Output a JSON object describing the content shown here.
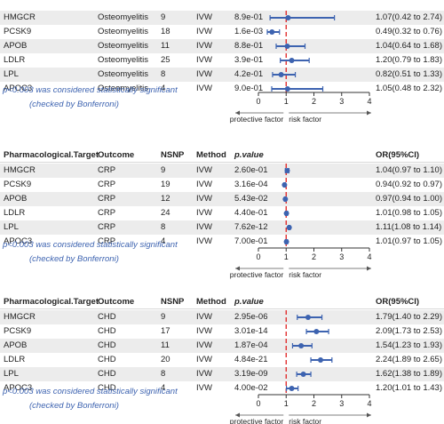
{
  "chart_data": [
    {
      "type": "forest",
      "columns": [
        "Pharmacological.Target",
        "Outcome",
        "NSNP",
        "Method",
        "p.value",
        "OR(95%CI)"
      ],
      "rows": [
        {
          "target": "HMGCR",
          "outcome": "Osteomyelitis",
          "nsnp": "9",
          "method": "IVW",
          "pvalue": "8.9e-01",
          "or_text": "1.07(0.42 to 2.74)",
          "or": 1.07,
          "lo": 0.42,
          "hi": 2.74
        },
        {
          "target": "PCSK9",
          "outcome": "Osteomyelitis",
          "nsnp": "18",
          "method": "IVW",
          "pvalue": "1.6e-03",
          "or_text": "0.49(0.32 to 0.76)",
          "or": 0.49,
          "lo": 0.32,
          "hi": 0.76
        },
        {
          "target": "APOB",
          "outcome": "Osteomyelitis",
          "nsnp": "11",
          "method": "IVW",
          "pvalue": "8.8e-01",
          "or_text": "1.04(0.64 to 1.68)",
          "or": 1.04,
          "lo": 0.64,
          "hi": 1.68
        },
        {
          "target": "LDLR",
          "outcome": "Osteomyelitis",
          "nsnp": "25",
          "method": "IVW",
          "pvalue": "3.9e-01",
          "or_text": "1.20(0.79 to 1.83)",
          "or": 1.2,
          "lo": 0.79,
          "hi": 1.83
        },
        {
          "target": "LPL",
          "outcome": "Osteomyelitis",
          "nsnp": "8",
          "method": "IVW",
          "pvalue": "4.2e-01",
          "or_text": "0.82(0.51 to 1.33)",
          "or": 0.82,
          "lo": 0.51,
          "hi": 1.33
        },
        {
          "target": "APOC3",
          "outcome": "Osteomyelitis",
          "nsnp": "4",
          "method": "IVW",
          "pvalue": "9.0e-01",
          "or_text": "1.05(0.48 to 2.32)",
          "or": 1.05,
          "lo": 0.48,
          "hi": 2.32
        }
      ],
      "xlim": [
        0,
        4
      ],
      "xticks": [
        "0",
        "1",
        "2",
        "3",
        "4"
      ],
      "reference_line": 1,
      "arrow_left_label": "protective factor",
      "arrow_right_label": "risk factor",
      "note_line1": "p<0.003 was considered statistically significant",
      "note_line2": "(checked by Bonferroni)"
    },
    {
      "type": "forest",
      "columns": [
        "Pharmacological.Target",
        "Outcome",
        "NSNP",
        "Method",
        "p.value",
        "OR(95%CI)"
      ],
      "rows": [
        {
          "target": "HMGCR",
          "outcome": "CRP",
          "nsnp": "9",
          "method": "IVW",
          "pvalue": "2.60e-01",
          "or_text": "1.04(0.97 to 1.10)",
          "or": 1.04,
          "lo": 0.97,
          "hi": 1.1
        },
        {
          "target": "PCSK9",
          "outcome": "CRP",
          "nsnp": "19",
          "method": "IVW",
          "pvalue": "3.16e-04",
          "or_text": "0.94(0.92 to 0.97)",
          "or": 0.94,
          "lo": 0.92,
          "hi": 0.97
        },
        {
          "target": "APOB",
          "outcome": "CRP",
          "nsnp": "12",
          "method": "IVW",
          "pvalue": "5.43e-02",
          "or_text": "0.97(0.94 to 1.00)",
          "or": 0.97,
          "lo": 0.94,
          "hi": 1.0
        },
        {
          "target": "LDLR",
          "outcome": "CRP",
          "nsnp": "24",
          "method": "IVW",
          "pvalue": "4.40e-01",
          "or_text": "1.01(0.98 to 1.05)",
          "or": 1.01,
          "lo": 0.98,
          "hi": 1.05
        },
        {
          "target": "LPL",
          "outcome": "CRP",
          "nsnp": "8",
          "method": "IVW",
          "pvalue": "7.62e-12",
          "or_text": "1.11(1.08 to 1.14)",
          "or": 1.11,
          "lo": 1.08,
          "hi": 1.14
        },
        {
          "target": "APOC3",
          "outcome": "CRP",
          "nsnp": "4",
          "method": "IVW",
          "pvalue": "7.00e-01",
          "or_text": "1.01(0.97 to 1.05)",
          "or": 1.01,
          "lo": 0.97,
          "hi": 1.05
        }
      ],
      "xlim": [
        0,
        4
      ],
      "xticks": [
        "0",
        "1",
        "2",
        "3",
        "4"
      ],
      "reference_line": 1,
      "arrow_left_label": "protective factor",
      "arrow_right_label": "risk factor",
      "note_line1": "p<0.003 was considered statistically significant",
      "note_line2": "(checked by Bonferroni)"
    },
    {
      "type": "forest",
      "columns": [
        "Pharmacological.Target",
        "Outcome",
        "NSNP",
        "Method",
        "p.value",
        "OR(95%CI)"
      ],
      "rows": [
        {
          "target": "HMGCR",
          "outcome": "CHD",
          "nsnp": "9",
          "method": "IVW",
          "pvalue": "2.95e-06",
          "or_text": "1.79(1.40 to 2.29)",
          "or": 1.79,
          "lo": 1.4,
          "hi": 2.29
        },
        {
          "target": "PCSK9",
          "outcome": "CHD",
          "nsnp": "17",
          "method": "IVW",
          "pvalue": "3.01e-14",
          "or_text": "2.09(1.73 to 2.53)",
          "or": 2.09,
          "lo": 1.73,
          "hi": 2.53
        },
        {
          "target": "APOB",
          "outcome": "CHD",
          "nsnp": "11",
          "method": "IVW",
          "pvalue": "1.87e-04",
          "or_text": "1.54(1.23 to 1.93)",
          "or": 1.54,
          "lo": 1.23,
          "hi": 1.93
        },
        {
          "target": "LDLR",
          "outcome": "CHD",
          "nsnp": "20",
          "method": "IVW",
          "pvalue": "4.84e-21",
          "or_text": "2.24(1.89 to 2.65)",
          "or": 2.24,
          "lo": 1.89,
          "hi": 2.65
        },
        {
          "target": "LPL",
          "outcome": "CHD",
          "nsnp": "8",
          "method": "IVW",
          "pvalue": "3.19e-09",
          "or_text": "1.62(1.38 to 1.89)",
          "or": 1.62,
          "lo": 1.38,
          "hi": 1.89
        },
        {
          "target": "APOC3",
          "outcome": "CHD",
          "nsnp": "4",
          "method": "IVW",
          "pvalue": "4.00e-02",
          "or_text": "1.20(1.01 to 1.43)",
          "or": 1.2,
          "lo": 1.01,
          "hi": 1.43
        }
      ],
      "xlim": [
        0,
        4
      ],
      "xticks": [
        "0",
        "1",
        "2",
        "3",
        "4"
      ],
      "reference_line": 1,
      "arrow_left_label": "protective factor",
      "arrow_right_label": "risk factor",
      "note_line1": "p<0.003 was considered statistically significant",
      "note_line2": "(checked by Bonferroni)"
    }
  ],
  "colors": {
    "marker": "#3d63b0",
    "reference_line": "#e02020",
    "note_text": "#3d63b0",
    "row_shade": "#ececec"
  }
}
